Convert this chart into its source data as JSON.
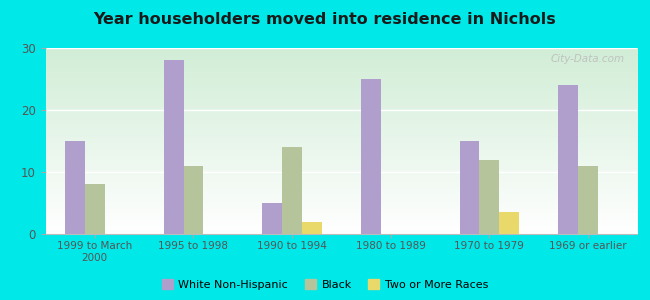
{
  "title": "Year householders moved into residence in Nichols",
  "categories": [
    "1999 to March\n2000",
    "1995 to 1998",
    "1990 to 1994",
    "1980 to 1989",
    "1970 to 1979",
    "1969 or earlier"
  ],
  "series": {
    "White Non-Hispanic": [
      15,
      28,
      5,
      25,
      15,
      24
    ],
    "Black": [
      8,
      11,
      14,
      0,
      12,
      11
    ],
    "Two or More Races": [
      0,
      0,
      2,
      0,
      3.5,
      0
    ]
  },
  "colors": {
    "White Non-Hispanic": "#b09fcc",
    "Black": "#b5c49a",
    "Two or More Races": "#e8d96a"
  },
  "ylim": [
    0,
    30
  ],
  "yticks": [
    0,
    10,
    20,
    30
  ],
  "background_color": "#00e8e8",
  "watermark": "City-Data.com",
  "bar_width": 0.2
}
